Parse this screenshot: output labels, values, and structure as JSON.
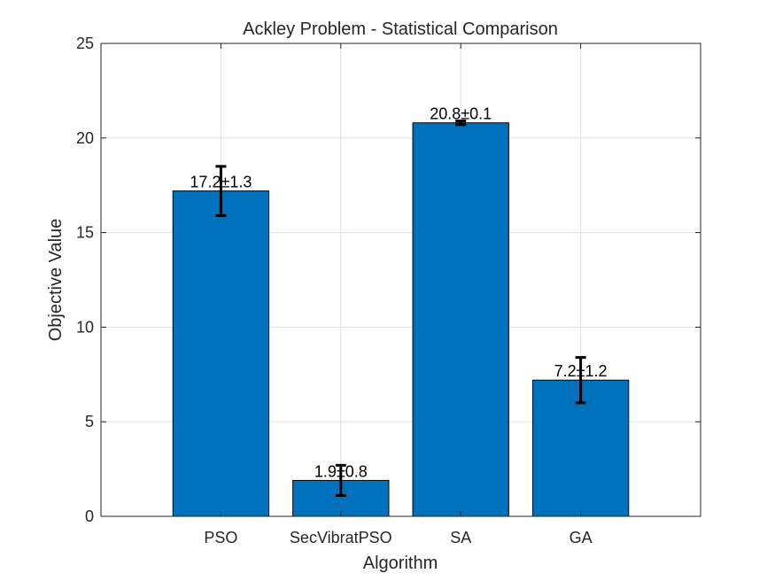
{
  "chart_data": {
    "type": "bar",
    "title": "Ackley Problem - Statistical Comparison",
    "xlabel": "Algorithm",
    "ylabel": "Objective Value",
    "categories": [
      "PSO",
      "SecVibratPSO",
      "SA",
      "GA"
    ],
    "values": [
      17.2,
      1.9,
      20.8,
      7.2
    ],
    "errors": [
      1.3,
      0.8,
      0.1,
      1.2
    ],
    "data_labels": [
      "17.2±1.3",
      "1.9±0.8",
      "20.8±0.1",
      "7.2±1.2"
    ],
    "ylim": [
      0,
      25
    ],
    "yticks": [
      0,
      5,
      10,
      15,
      20,
      25
    ],
    "xlim": [
      0,
      5
    ],
    "grid": true,
    "bar_color": "#0072BD",
    "bar_edge_color": "#000000",
    "error_bar_color": "#000000"
  }
}
